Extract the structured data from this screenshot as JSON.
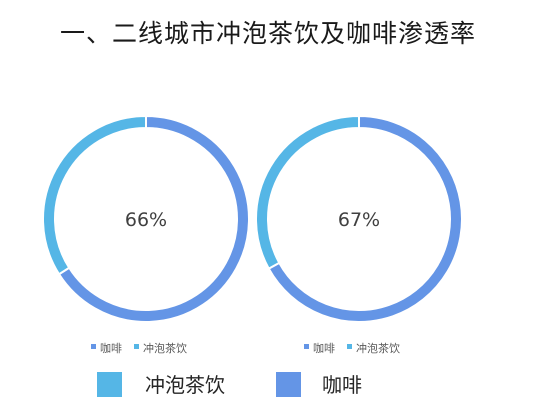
{
  "title": "一、二线城市冲泡茶饮及咖啡渗透率",
  "colors": {
    "coffee": "#6495e6",
    "tea": "#55b6e6"
  },
  "chart_data": [
    {
      "type": "pie",
      "center_label": "66%",
      "legend": [
        "咖啡",
        "冲泡茶饮"
      ],
      "series": [
        {
          "name": "咖啡",
          "value": 66
        },
        {
          "name": "冲泡茶饮",
          "value": 34
        }
      ]
    },
    {
      "type": "pie",
      "center_label": "67%",
      "legend": [
        "咖啡",
        "冲泡茶饮"
      ],
      "series": [
        {
          "name": "咖啡",
          "value": 67
        },
        {
          "name": "冲泡茶饮",
          "value": 33
        }
      ]
    }
  ],
  "bottom_legend": {
    "tea": "冲泡茶饮",
    "coffee": "咖啡"
  }
}
